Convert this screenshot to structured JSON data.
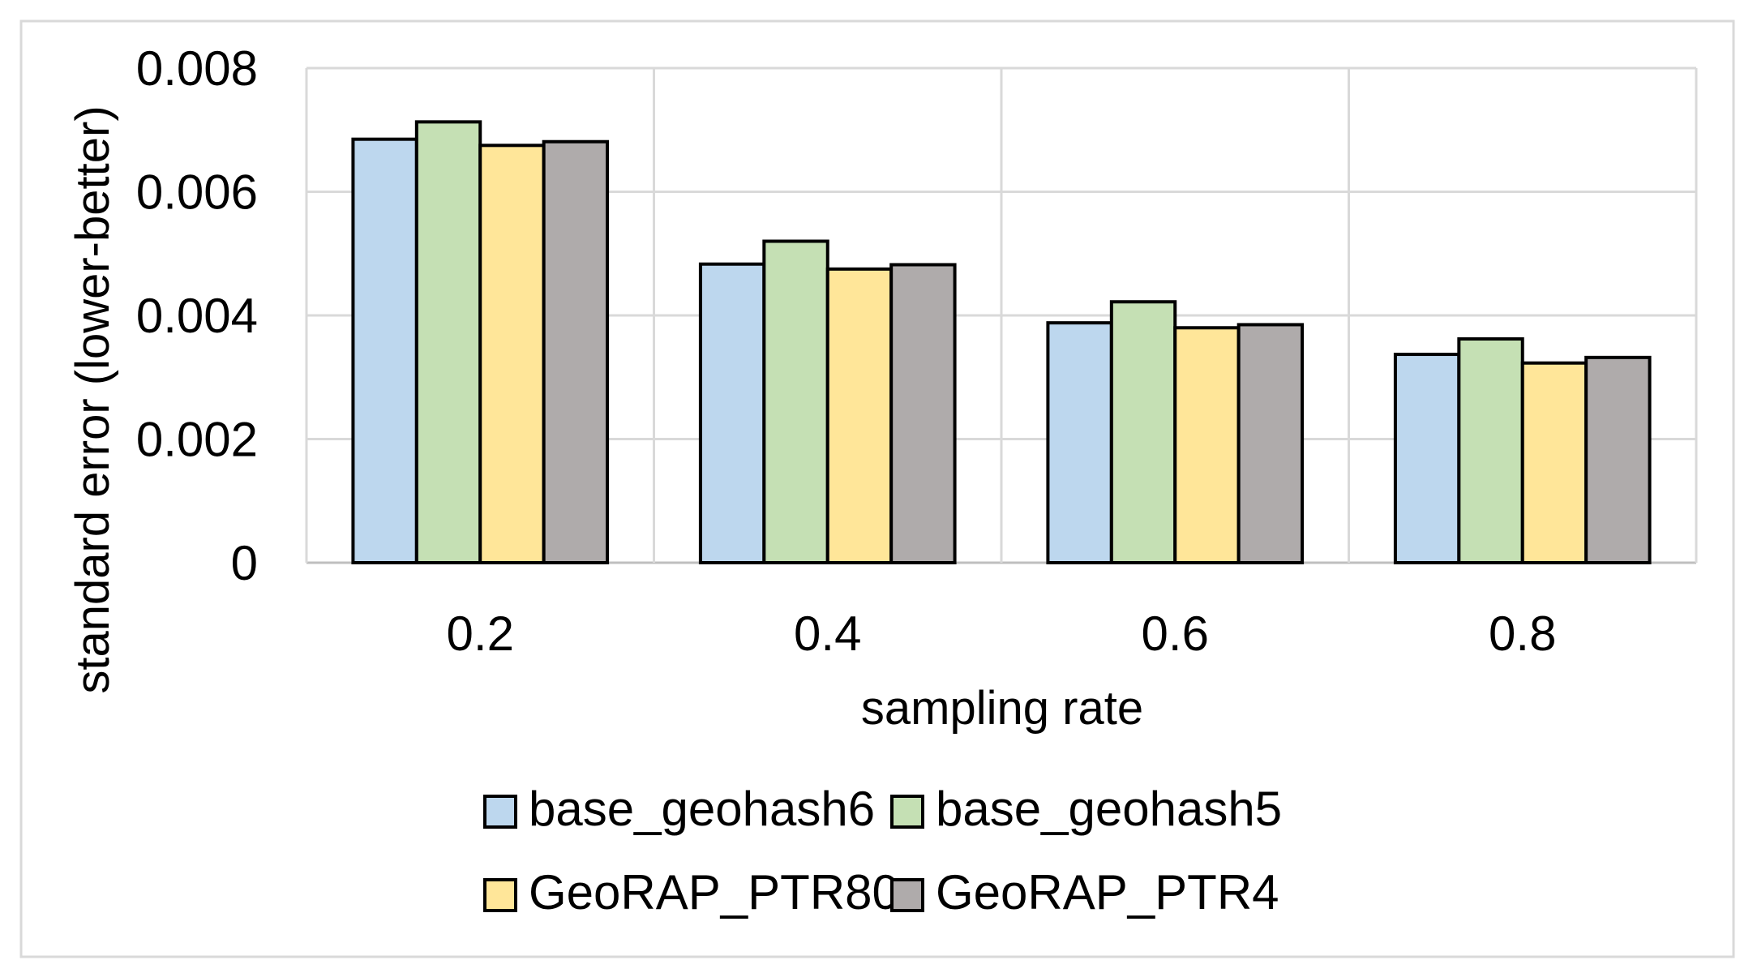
{
  "chart_data": {
    "type": "bar",
    "title": "",
    "xlabel": "sampling rate",
    "ylabel": "standard error (lower-better)",
    "categories": [
      "0.2",
      "0.4",
      "0.6",
      "0.8"
    ],
    "ylim": [
      0,
      0.008
    ],
    "yticks": [
      0,
      0.002,
      0.004,
      0.006,
      0.008
    ],
    "ytick_labels": [
      "0",
      "0.002",
      "0.004",
      "0.006",
      "0.008"
    ],
    "grid": true,
    "legend_position": "bottom",
    "series": [
      {
        "name": "base_geohash6",
        "color": "#bdd7ee",
        "values": [
          0.00685,
          0.00483,
          0.00388,
          0.00337
        ]
      },
      {
        "name": "base_geohash5",
        "color": "#c5e0b4",
        "values": [
          0.00713,
          0.0052,
          0.00422,
          0.00362
        ]
      },
      {
        "name": "GeoRAP_PTR80",
        "color": "#ffe699",
        "values": [
          0.00675,
          0.00475,
          0.0038,
          0.00323
        ]
      },
      {
        "name": "GeoRAP_PTR4",
        "color": "#afabab",
        "values": [
          0.00681,
          0.00482,
          0.00385,
          0.00332
        ]
      }
    ]
  }
}
